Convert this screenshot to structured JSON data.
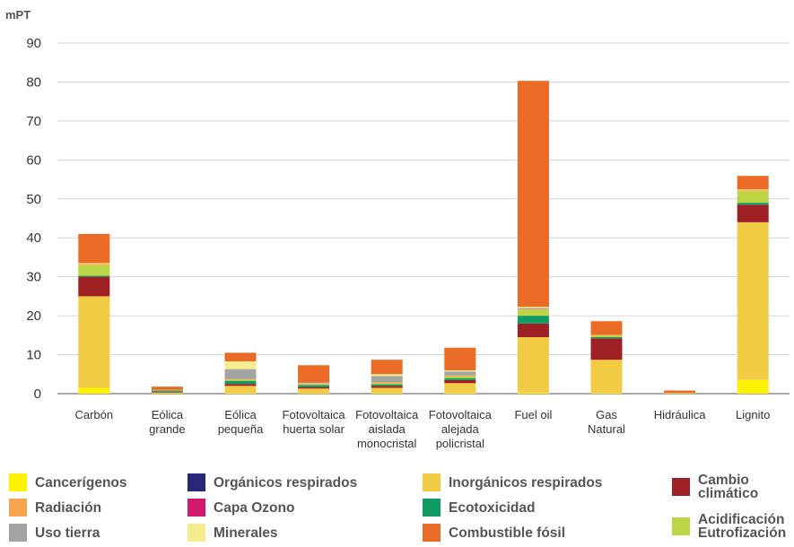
{
  "chart_data": {
    "type": "bar",
    "stacked": true,
    "ylabel": "mPT",
    "ylim": [
      0,
      90
    ],
    "yticks": [
      0,
      10,
      20,
      30,
      40,
      50,
      60,
      70,
      80,
      90
    ],
    "grid": true,
    "categories": [
      [
        "Carbón"
      ],
      [
        "Eólica",
        "grande"
      ],
      [
        "Eólica",
        "pequeña"
      ],
      [
        "Fotovoltaica",
        "huerta solar"
      ],
      [
        "Fotovoltaica",
        "aislada",
        "monocristal"
      ],
      [
        "Fotovoltaica",
        "alejada",
        "policristal"
      ],
      [
        "Fuel oil"
      ],
      [
        "Gas",
        "Natural"
      ],
      [
        "Hidráulica"
      ],
      [
        "Lignito"
      ]
    ],
    "series": [
      {
        "name": "Cancerígenos",
        "color": "#fff200",
        "values": [
          1.5,
          0.1,
          0.2,
          0.1,
          0.2,
          0.2,
          0.3,
          0.2,
          0.0,
          3.5
        ]
      },
      {
        "name": "Inorgánicos respirados",
        "color": "#f2cb45",
        "values": [
          23.5,
          0.2,
          1.8,
          1.2,
          1.3,
          2.5,
          14.2,
          8.5,
          0.2,
          40.5
        ]
      },
      {
        "name": "Cambio climático",
        "color": "#9e1f24",
        "values": [
          5.0,
          0.2,
          0.5,
          0.4,
          0.5,
          0.8,
          3.5,
          5.5,
          0.0,
          4.5
        ]
      },
      {
        "name": "Ecotoxicidad",
        "color": "#109a64",
        "values": [
          0.3,
          0.3,
          0.8,
          0.5,
          0.4,
          0.5,
          2.0,
          0.3,
          0.0,
          0.5
        ]
      },
      {
        "name": "Acidificación Eutrofización",
        "color": "#bcd544",
        "values": [
          2.7,
          0.1,
          0.3,
          0.2,
          0.3,
          0.5,
          1.5,
          0.5,
          0.0,
          3.0
        ]
      },
      {
        "name": "Radiación",
        "color": "#f7a54e",
        "values": [
          0.3,
          0.1,
          0.2,
          0.1,
          0.3,
          0.2,
          0.2,
          0.1,
          0.0,
          0.2
        ]
      },
      {
        "name": "Uso tierra",
        "color": "#a3a3a3",
        "values": [
          0.0,
          0.0,
          2.5,
          0.2,
          1.5,
          1.0,
          0.3,
          0.0,
          0.0,
          0.0
        ]
      },
      {
        "name": "Minerales",
        "color": "#f4ec8f",
        "values": [
          0.2,
          0.0,
          2.0,
          0.1,
          0.5,
          0.3,
          0.3,
          0.0,
          0.0,
          0.2
        ]
      },
      {
        "name": "Combustible fósil",
        "color": "#ea6b25",
        "values": [
          7.5,
          0.8,
          2.2,
          4.5,
          3.7,
          5.8,
          58.0,
          3.5,
          0.6,
          3.5
        ]
      },
      {
        "name": "Orgánicos respirados",
        "color": "#27287a",
        "values": [
          0,
          0,
          0,
          0,
          0,
          0,
          0,
          0,
          0,
          0
        ]
      },
      {
        "name": "Capa Ozono",
        "color": "#d2186b",
        "values": [
          0,
          0,
          0,
          0,
          0,
          0,
          0,
          0,
          0,
          0
        ]
      }
    ]
  },
  "legend": {
    "canc": {
      "label": "Cancerígenos",
      "color": "#fff200"
    },
    "rad": {
      "label": "Radiación",
      "color": "#f7a54e"
    },
    "uso": {
      "label": "Uso tierra",
      "color": "#a3a3a3"
    },
    "org": {
      "label": "Orgánicos respirados",
      "color": "#27287a"
    },
    "ozono": {
      "label": "Capa Ozono",
      "color": "#d2186b"
    },
    "min": {
      "label": "Minerales",
      "color": "#f4ec8f"
    },
    "inorg": {
      "label": "Inorgánicos respirados",
      "color": "#f2cb45"
    },
    "eco": {
      "label": "Ecotoxicidad",
      "color": "#109a64"
    },
    "comb": {
      "label": "Combustible fósil",
      "color": "#ea6b25"
    },
    "cambio": {
      "label": "Cambio climático",
      "color": "#9e1f24"
    },
    "acid": {
      "label": "Acidificación Eutrofización",
      "color": "#bcd544"
    }
  }
}
